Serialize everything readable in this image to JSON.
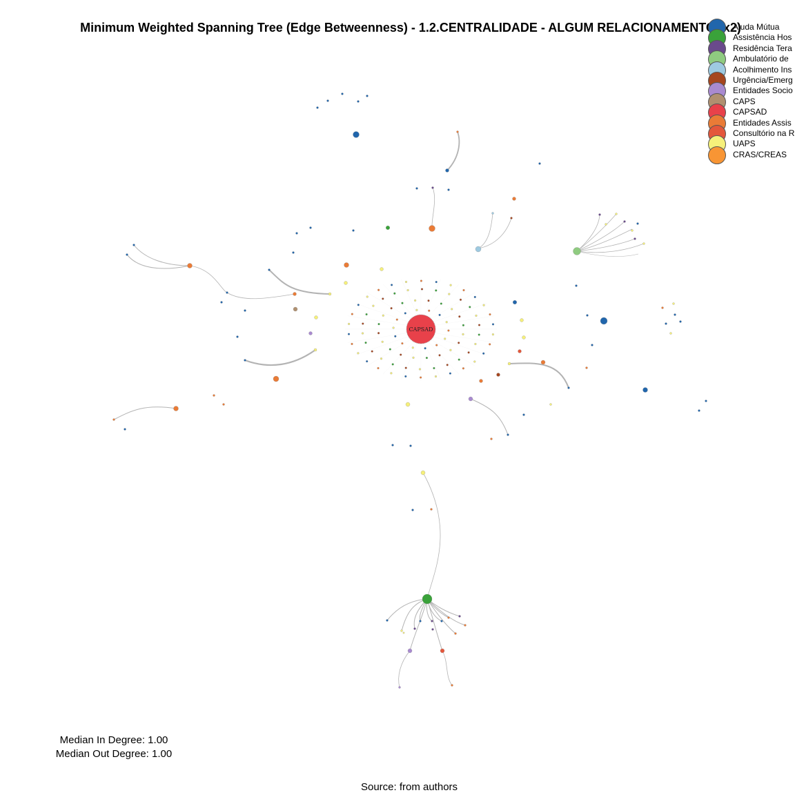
{
  "title": "Minimum Weighted Spanning Tree (Edge Betweenness) - 1.2.CENTRALIDADE - ALGUM RELACIONAMENTO (x2)",
  "legend": [
    {
      "label": "Ajuda Mútua",
      "color": "#2166ac"
    },
    {
      "label": "Assistência Hos",
      "color": "#3aa23a"
    },
    {
      "label": "Residência Tera",
      "color": "#6a4a8c"
    },
    {
      "label": "Ambulatório de",
      "color": "#8fcb80"
    },
    {
      "label": "Acolhimento Ins",
      "color": "#9ecae1"
    },
    {
      "label": "Urgência/Emerg",
      "color": "#a6461f"
    },
    {
      "label": "Entidades Socio",
      "color": "#a98ad0"
    },
    {
      "label": "CAPS",
      "color": "#b09070"
    },
    {
      "label": "CAPSAD",
      "color": "#e8414a"
    },
    {
      "label": "Entidades Assis",
      "color": "#ea7b36"
    },
    {
      "label": "Consultório na R",
      "color": "#e4573b"
    },
    {
      "label": "UAPS",
      "color": "#f6f07a"
    },
    {
      "label": "CRAS/CREAS",
      "color": "#f89534"
    }
  ],
  "center_node_label": "CAPSAD",
  "stats": {
    "in_degree": "Median In Degree: 1.00",
    "out_degree": "Median Out Degree: 1.00"
  },
  "source": "Source: from authors"
}
